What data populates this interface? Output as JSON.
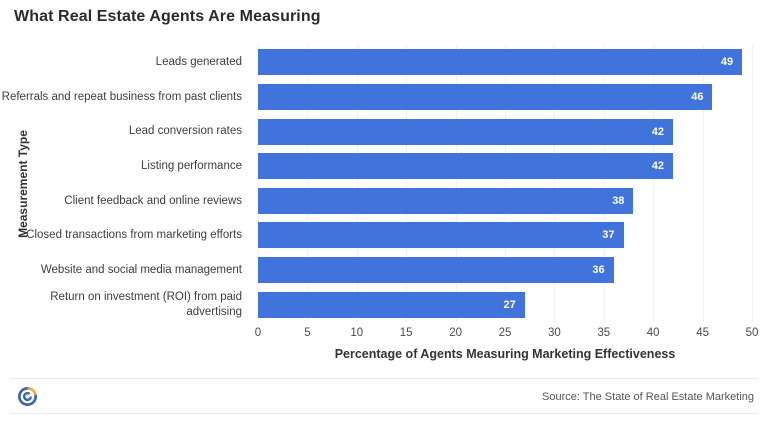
{
  "title": "What Real Estate Agents Are Measuring",
  "chart_data": {
    "type": "bar",
    "orientation": "horizontal",
    "title": "What Real Estate Agents Are Measuring",
    "categories": [
      "Leads generated",
      "Referrals and repeat business from past clients",
      "Lead conversion rates",
      "Listing performance",
      "Client feedback and online reviews",
      "Closed transactions from marketing efforts",
      "Website and social media management",
      "Return on investment (ROI) from paid advertising"
    ],
    "values": [
      49,
      46,
      42,
      42,
      38,
      37,
      36,
      27
    ],
    "xlabel": "Percentage of Agents Measuring Marketing Effectiveness",
    "ylabel": "Measurement Type",
    "xlim": [
      0,
      50
    ],
    "xticks": [
      0,
      5,
      10,
      15,
      20,
      25,
      30,
      35,
      40,
      45,
      50
    ],
    "grid": "vertical",
    "legend": "none",
    "bar_color": "#4173dd",
    "value_label_color": "#ffffff"
  },
  "colors": {
    "title_text": "#2b2b2b",
    "category_text": "#3d3d3d",
    "tick_text": "#4a4a4a",
    "gridline": "#f0f0f0",
    "divider": "#e9e9e9",
    "source_text": "#555555",
    "logo_blue": "#3a66ae",
    "logo_yellow": "#f0a93a"
  },
  "footer": {
    "source": "Source: The State of Real Estate Marketing",
    "logo": "brand-logo"
  }
}
